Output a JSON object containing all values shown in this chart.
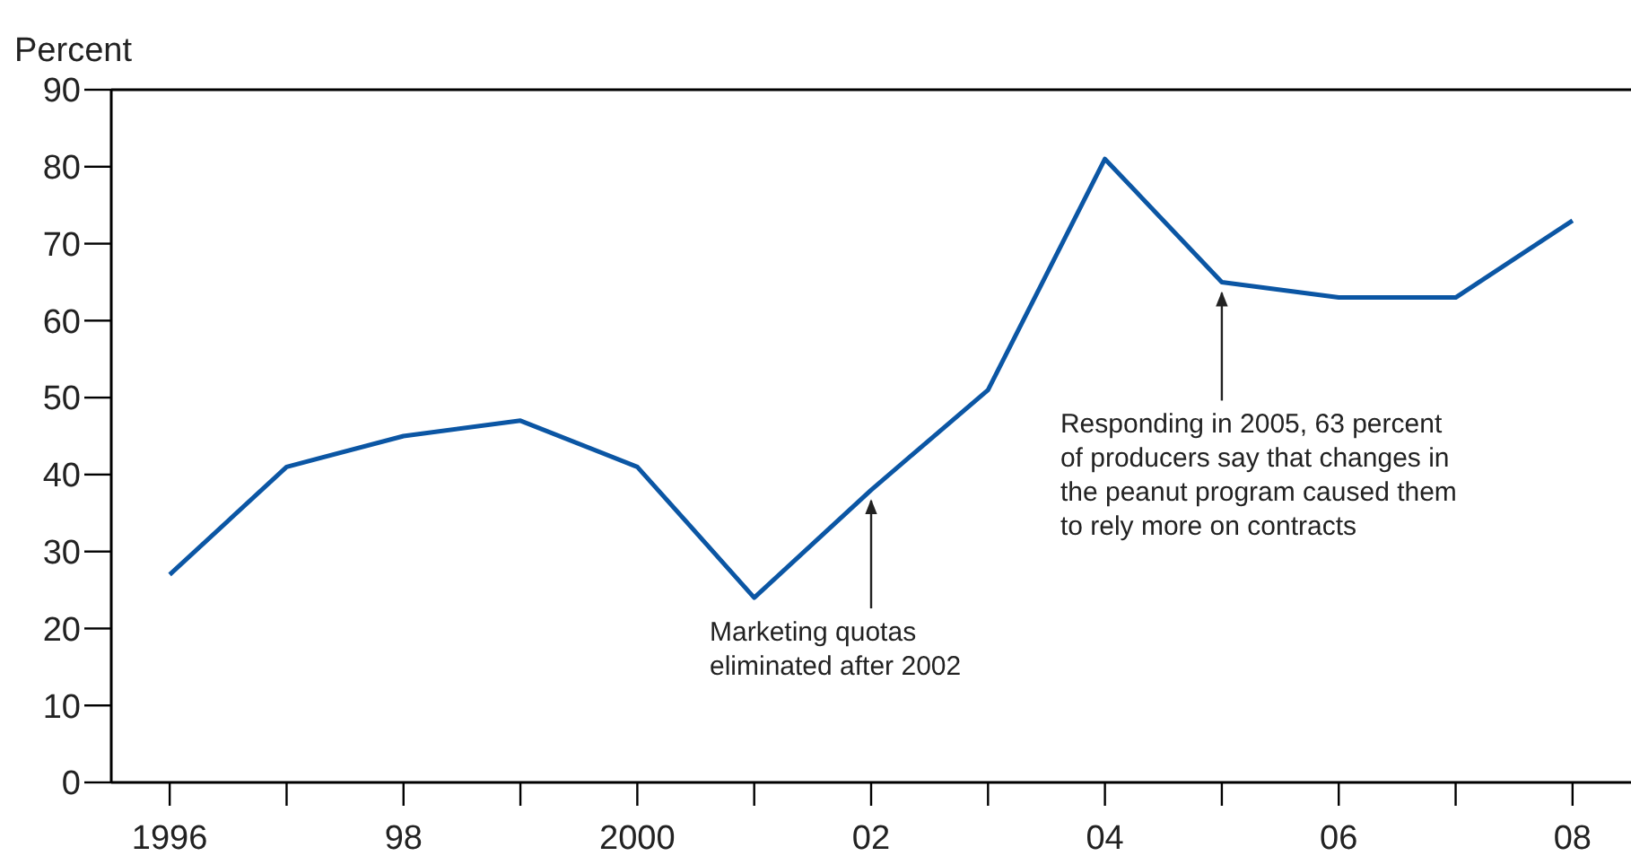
{
  "chart_data": {
    "type": "line",
    "ylabel": "Percent",
    "x": [
      1996,
      1997,
      1998,
      1999,
      2000,
      2001,
      2002,
      2003,
      2004,
      2005,
      2006,
      2007,
      2008
    ],
    "series": [
      {
        "color": "#0b56a4",
        "values": [
          27,
          41,
          45,
          47,
          41,
          24,
          38,
          51,
          81,
          65,
          63,
          63,
          73
        ]
      }
    ],
    "xlim": [
      1995.5,
      2008.5
    ],
    "xticks": [
      1996,
      {
        "value": 1997,
        "label": null
      },
      {
        "value": 1998,
        "label": "98"
      },
      {
        "value": 1999,
        "label": null
      },
      2000,
      {
        "value": 2001,
        "label": null
      },
      {
        "value": 2002,
        "label": "02"
      },
      {
        "value": 2003,
        "label": null
      },
      {
        "value": 2004,
        "label": "04"
      },
      {
        "value": 2005,
        "label": null
      },
      {
        "value": 2006,
        "label": "06"
      },
      {
        "value": 2007,
        "label": null
      },
      {
        "value": 2008,
        "label": "08"
      }
    ],
    "ylim": [
      0,
      90
    ],
    "yticks": [
      0,
      10,
      20,
      30,
      40,
      50,
      60,
      70,
      80,
      90
    ],
    "grid": false,
    "marker": "none",
    "line_style": "solid",
    "annotations": [
      {
        "text": "Marketing quotas\neliminated after 2002",
        "x": 2002,
        "y": 38
      },
      {
        "text": "Responding in 2005, 63 percent\nof producers say that changes in\nthe peanut program caused them\nto rely more on contracts",
        "x": 2005,
        "y": 65
      }
    ]
  }
}
